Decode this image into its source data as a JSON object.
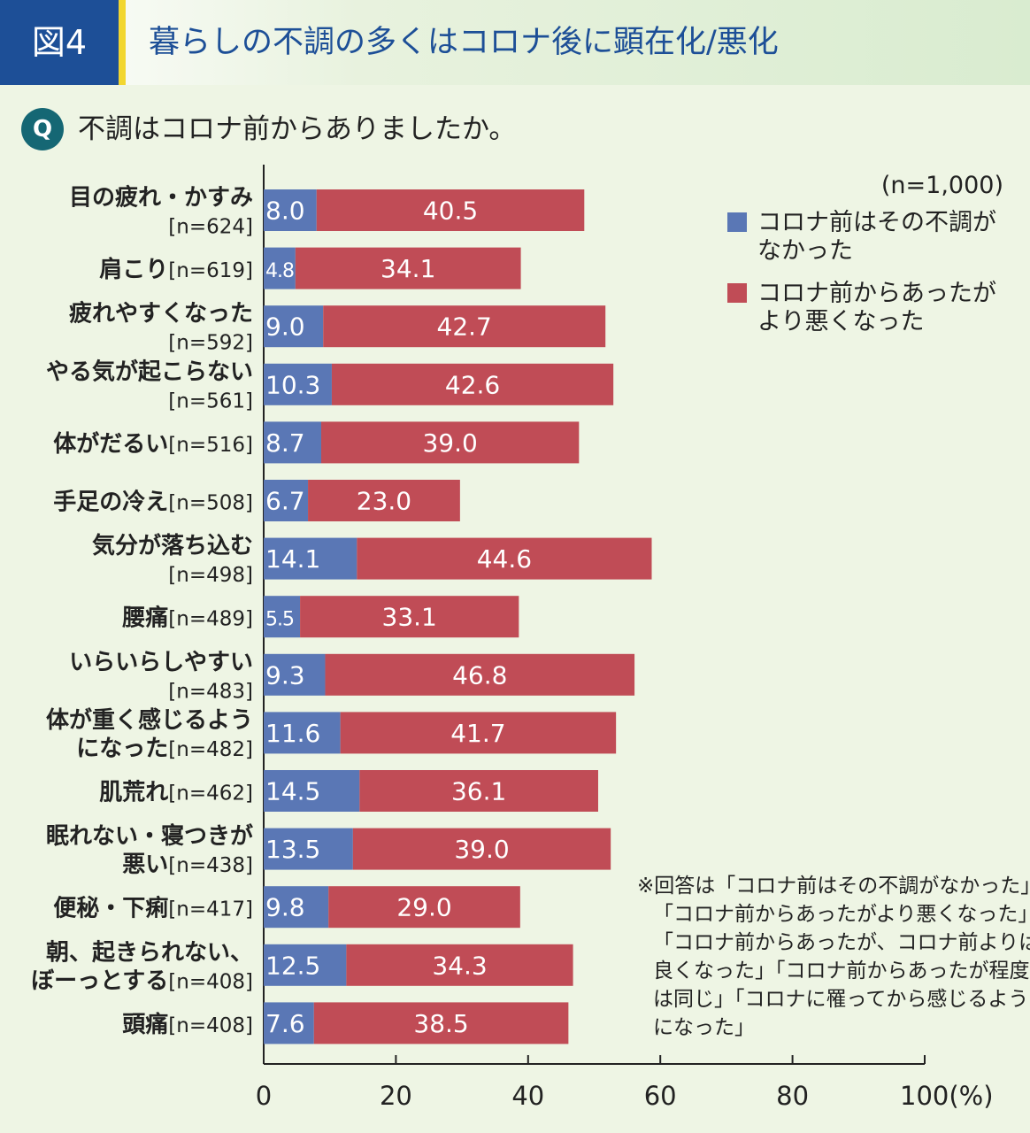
{
  "figure_label": "図4",
  "figure_title": "暮らしの不調の多くはコロナ後に顕在化/悪化",
  "question_badge": "Q",
  "question": "不調はコロナ前からありましたか。",
  "colors": {
    "no_before": "#5a77b5",
    "worse": "#c04c56",
    "navy": "#1d4f97",
    "teal": "#156774"
  },
  "chart_data": {
    "type": "bar",
    "stacked": true,
    "orientation": "horizontal",
    "n_note": "(n=1,000)",
    "categories": [
      {
        "lines": [
          "目の疲れ・かすみ",
          "[n=624]"
        ]
      },
      {
        "lines": [
          "肩こり[n=619]"
        ]
      },
      {
        "lines": [
          "疲れやすくなった",
          "[n=592]"
        ]
      },
      {
        "lines": [
          "やる気が起こらない",
          "[n=561]"
        ]
      },
      {
        "lines": [
          "体がだるい[n=516]"
        ]
      },
      {
        "lines": [
          "手足の冷え[n=508]"
        ]
      },
      {
        "lines": [
          "気分が落ち込む",
          "[n=498]"
        ]
      },
      {
        "lines": [
          "腰痛[n=489]"
        ]
      },
      {
        "lines": [
          "いらいらしやすい",
          "[n=483]"
        ]
      },
      {
        "lines": [
          "体が重く感じるよう",
          "になった[n=482]"
        ]
      },
      {
        "lines": [
          "肌荒れ[n=462]"
        ]
      },
      {
        "lines": [
          "眠れない・寝つきが",
          "悪い[n=438]"
        ]
      },
      {
        "lines": [
          "便秘・下痢[n=417]"
        ]
      },
      {
        "lines": [
          "朝、起きられない、",
          "ぼーっとする[n=408]"
        ]
      },
      {
        "lines": [
          "頭痛[n=408]"
        ]
      }
    ],
    "series": [
      {
        "name_lines": [
          "コロナ前はその不調が",
          "なかった"
        ],
        "color": "#5a77b5",
        "values": [
          8.0,
          4.8,
          9.0,
          10.3,
          8.7,
          6.7,
          14.1,
          5.5,
          9.3,
          11.6,
          14.5,
          13.5,
          9.8,
          12.5,
          7.6
        ]
      },
      {
        "name_lines": [
          "コロナ前からあったが",
          "より悪くなった"
        ],
        "color": "#c04c56",
        "values": [
          40.5,
          34.1,
          42.7,
          42.6,
          39.0,
          23.0,
          44.6,
          33.1,
          46.8,
          41.7,
          36.1,
          39.0,
          29.0,
          34.3,
          38.5
        ]
      }
    ],
    "x_ticks": [
      "0",
      "20",
      "40",
      "60",
      "80",
      "100(%)"
    ],
    "xlim": [
      0,
      100
    ],
    "grid": false,
    "legend": "top-right",
    "note_lines": [
      "※回答は「コロナ前はその不調がなかった」",
      "「コロナ前からあったがより悪くなった」",
      "「コロナ前からあったが、コロナ前よりは",
      "良くなった」「コロナ前からあったが程度",
      "は同じ」「コロナに罹ってから感じるよう",
      "になった」"
    ]
  }
}
